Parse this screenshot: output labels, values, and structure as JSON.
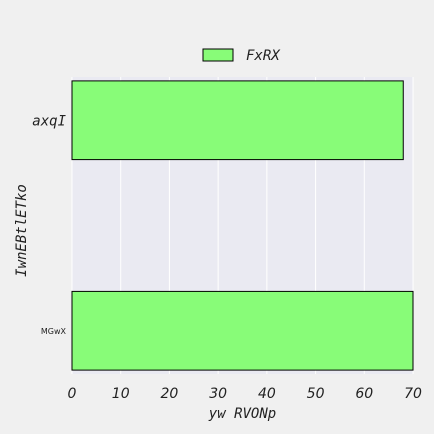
{
  "chart_data": {
    "type": "bar",
    "orientation": "horizontal",
    "categories": [
      "axqI",
      "MGwX"
    ],
    "series": [
      {
        "name": "FxRX",
        "values": [
          68,
          70
        ],
        "color": "#88fc78"
      }
    ],
    "xlabel": "yw RVONp",
    "ylabel": "IwnEBtlETko",
    "xlim": [
      0,
      70
    ],
    "xticks": [
      0,
      10,
      20,
      30,
      40,
      50,
      60,
      70
    ],
    "grid": true,
    "legend": "top-center",
    "colors": {
      "plot_bg": "#eaeaf2",
      "page_bg": "#f0f0f0",
      "bar_edge": "#000000",
      "grid": "#ffffff"
    }
  }
}
